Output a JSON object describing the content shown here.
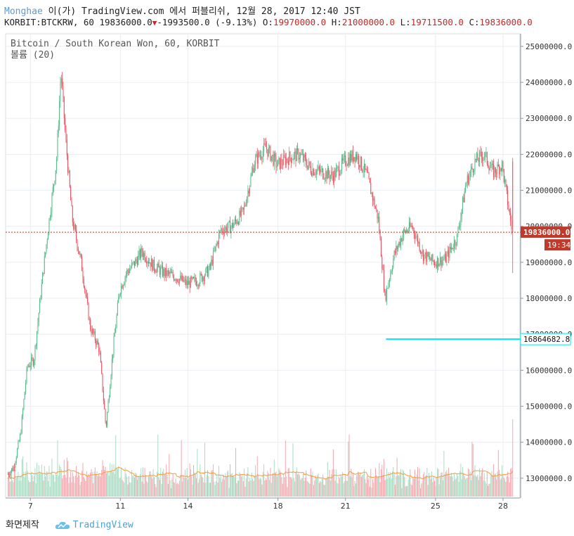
{
  "header": {
    "author": "Monghae",
    "mid_text": " 이(가) TradingView.com 에서 퍼블리쉬, 12월 28, 2017 12:40 JST",
    "ticker": "KORBIT:BTCKRW, 60",
    "last": "19836000.0",
    "arrow": "▼",
    "change": "-1993500.0 (-9.13%)",
    "o_label": "O:",
    "o_value": "19970000.0",
    "h_label": "H:",
    "h_value": "21000000.0",
    "l_label": "L:",
    "l_value": "19711500.0",
    "c_label": "C:",
    "c_value": "19836000.0"
  },
  "legend": {
    "series_title": "Bitcoin / South Korean Won, 60, KORBIT",
    "volume_title": "볼륨 (20)"
  },
  "footer": {
    "caption": "화면제작",
    "brand": "TradingView"
  },
  "colors": {
    "up": "#53b987",
    "down": "#eb4d5c",
    "vol_up": "#a9dcc3",
    "vol_down": "#f5a6ae",
    "vol_ma": "#f29d3c",
    "price_line": "#c0392b",
    "hline": "#00e5ff",
    "grid": "#e9eef2"
  },
  "chart_data": {
    "type": "candlestick",
    "title": "Bitcoin / South Korean Won, 60, KORBIT",
    "y_ticks": [
      13000000,
      14000000,
      15000000,
      16000000,
      17000000,
      18000000,
      19000000,
      20000000,
      21000000,
      22000000,
      23000000,
      24000000,
      25000000
    ],
    "y_tick_labels": [
      "13000000.0",
      "14000000.0",
      "15000000.0",
      "16000000.0",
      "17000000.0",
      "18000000.0",
      "19000000.0",
      "20000000.0",
      "21000000.0",
      "22000000.0",
      "23000000.0",
      "24000000.0",
      "25000000.0"
    ],
    "ylim": [
      12450000,
      25350000
    ],
    "x_ticks": [
      {
        "label": "7",
        "day": 7
      },
      {
        "label": "11",
        "day": 11
      },
      {
        "label": "14",
        "day": 14
      },
      {
        "label": "18",
        "day": 18
      },
      {
        "label": "21",
        "day": 21
      },
      {
        "label": "25",
        "day": 25
      },
      {
        "label": "28",
        "day": 28
      }
    ],
    "price_anchors": [
      [
        6.0,
        13100000
      ],
      [
        6.3,
        13300000
      ],
      [
        6.6,
        14200000
      ],
      [
        6.9,
        16100000
      ],
      [
        7.2,
        16300000
      ],
      [
        7.6,
        18700000
      ],
      [
        7.9,
        20300000
      ],
      [
        8.2,
        21800000
      ],
      [
        8.4,
        24300000
      ],
      [
        8.6,
        22500000
      ],
      [
        8.9,
        20200000
      ],
      [
        9.3,
        19000000
      ],
      [
        9.7,
        17200000
      ],
      [
        10.1,
        16600000
      ],
      [
        10.4,
        14400000
      ],
      [
        10.7,
        16500000
      ],
      [
        11.0,
        18200000
      ],
      [
        11.3,
        18700000
      ],
      [
        11.7,
        19000000
      ],
      [
        12.0,
        19300000
      ],
      [
        12.5,
        18900000
      ],
      [
        13.0,
        18700000
      ],
      [
        13.5,
        18600000
      ],
      [
        14.0,
        18400000
      ],
      [
        14.5,
        18500000
      ],
      [
        15.0,
        18800000
      ],
      [
        15.5,
        19900000
      ],
      [
        16.0,
        20000000
      ],
      [
        16.5,
        20400000
      ],
      [
        17.0,
        21800000
      ],
      [
        17.5,
        22200000
      ],
      [
        18.0,
        21700000
      ],
      [
        18.5,
        21900000
      ],
      [
        19.0,
        22000000
      ],
      [
        19.5,
        21600000
      ],
      [
        20.0,
        21500000
      ],
      [
        20.5,
        21400000
      ],
      [
        21.0,
        21800000
      ],
      [
        21.5,
        22000000
      ],
      [
        22.0,
        21400000
      ],
      [
        22.5,
        20200000
      ],
      [
        22.8,
        18000000
      ],
      [
        23.2,
        19200000
      ],
      [
        23.6,
        19800000
      ],
      [
        24.0,
        20000000
      ],
      [
        24.5,
        19200000
      ],
      [
        25.0,
        19000000
      ],
      [
        25.5,
        19100000
      ],
      [
        26.0,
        19700000
      ],
      [
        26.4,
        21200000
      ],
      [
        26.8,
        21800000
      ],
      [
        27.2,
        22000000
      ],
      [
        27.6,
        21500000
      ],
      [
        28.0,
        21700000
      ],
      [
        28.45,
        19836000
      ]
    ],
    "current_price": 19836000,
    "current_price_label": "19836000.0",
    "countdown_label": "19:34",
    "horizontal_line": 16864682.8,
    "horizontal_line_label": "16864682.8",
    "horizontal_line_from_day": 22.8,
    "volume_ma_period": 20
  }
}
